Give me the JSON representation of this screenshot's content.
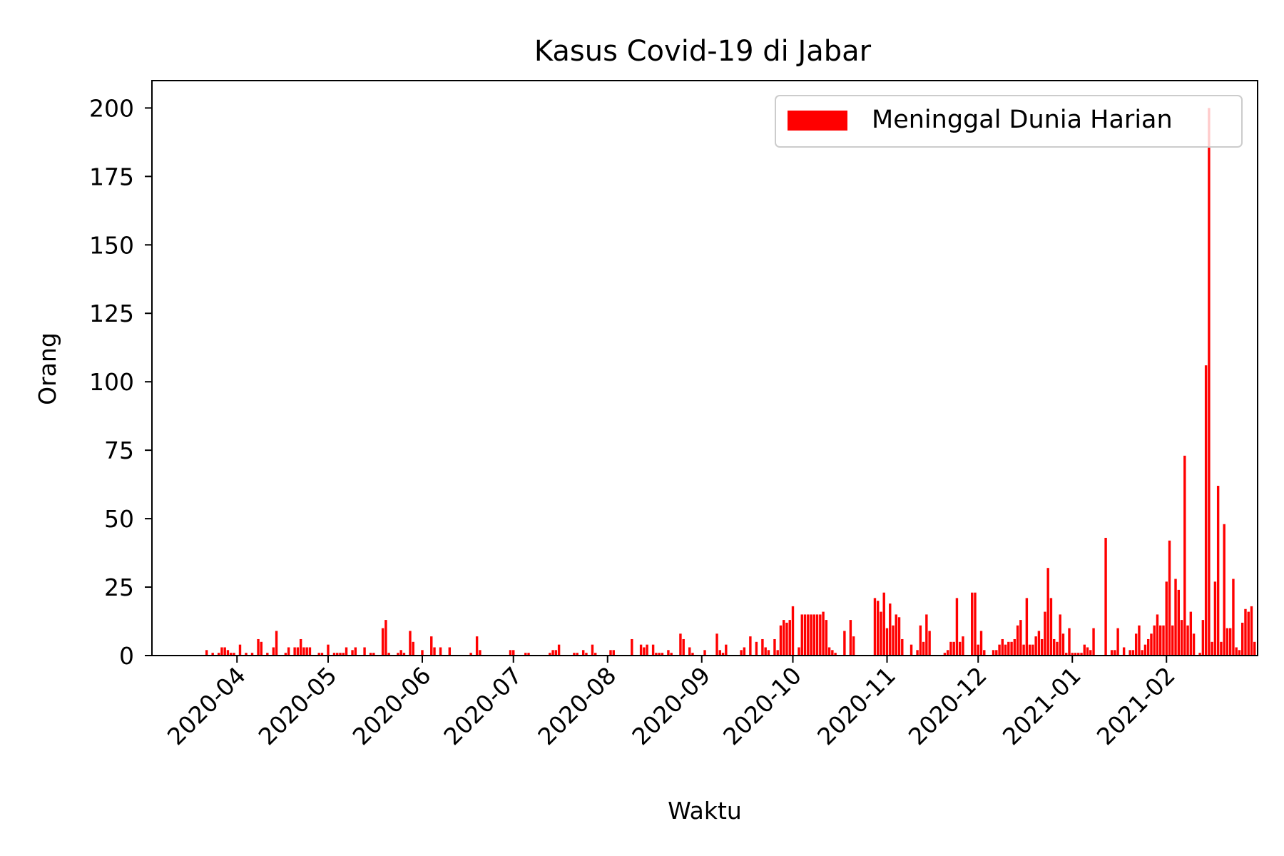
{
  "chart_data": {
    "type": "bar",
    "title": "Kasus Covid-19 di Jabar",
    "xlabel": "Waktu",
    "ylabel": "Orang",
    "ylim": [
      0,
      210
    ],
    "yticks": [
      0,
      25,
      50,
      75,
      100,
      125,
      150,
      175,
      200
    ],
    "xticks": [
      {
        "label": "2020-04",
        "day": 0
      },
      {
        "label": "2020-05",
        "day": 30
      },
      {
        "label": "2020-06",
        "day": 61
      },
      {
        "label": "2020-07",
        "day": 91
      },
      {
        "label": "2020-08",
        "day": 122
      },
      {
        "label": "2020-09",
        "day": 153
      },
      {
        "label": "2020-10",
        "day": 183
      },
      {
        "label": "2020-11",
        "day": 214
      },
      {
        "label": "2020-12",
        "day": 244
      },
      {
        "label": "2021-01",
        "day": 275
      },
      {
        "label": "2021-02",
        "day": 306
      }
    ],
    "xlim_days": [
      -28,
      336
    ],
    "x_unit": "days since 2020-04-01",
    "grid": false,
    "legend_position": "top-right",
    "series": [
      {
        "name": "Meninggal Dunia Harian",
        "color": "#ff0000",
        "start_day": -10,
        "values": [
          2,
          0,
          1,
          0,
          1,
          3,
          3,
          2,
          1,
          1,
          0,
          4,
          0,
          1,
          0,
          1,
          0,
          6,
          5,
          0,
          1,
          0,
          3,
          9,
          0,
          0,
          1,
          3,
          0,
          3,
          3,
          6,
          3,
          3,
          3,
          0,
          0,
          1,
          1,
          0,
          4,
          0,
          1,
          1,
          1,
          1,
          3,
          0,
          2,
          3,
          0,
          0,
          3,
          0,
          1,
          1,
          0,
          0,
          10,
          13,
          1,
          0,
          0,
          1,
          2,
          1,
          0,
          9,
          5,
          0,
          0,
          2,
          0,
          0,
          7,
          3,
          0,
          3,
          0,
          0,
          3,
          0,
          0,
          0,
          0,
          0,
          0,
          1,
          0,
          7,
          2,
          0,
          0,
          0,
          0,
          0,
          0,
          0,
          0,
          0,
          2,
          2,
          0,
          0,
          0,
          1,
          1,
          0,
          0,
          0,
          0,
          0,
          0,
          1,
          2,
          2,
          4,
          0,
          0,
          0,
          0,
          1,
          1,
          0,
          2,
          1,
          0,
          4,
          1,
          0,
          0,
          0,
          0,
          2,
          2,
          0,
          0,
          0,
          0,
          0,
          6,
          0,
          0,
          4,
          3,
          4,
          0,
          4,
          1,
          1,
          1,
          0,
          2,
          1,
          0,
          0,
          8,
          6,
          0,
          3,
          1,
          0,
          0,
          0,
          2,
          0,
          0,
          0,
          8,
          2,
          1,
          4,
          0,
          0,
          0,
          0,
          2,
          3,
          0,
          7,
          0,
          5,
          0,
          6,
          3,
          2,
          0,
          6,
          2,
          11,
          13,
          12,
          13,
          18,
          0,
          3,
          15,
          15,
          15,
          15,
          15,
          15,
          15,
          16,
          13,
          3,
          2,
          1,
          0,
          0,
          9,
          0,
          13,
          7,
          0,
          0,
          0,
          0,
          0,
          0,
          21,
          20,
          16,
          23,
          10,
          19,
          11,
          15,
          14,
          6,
          0,
          0,
          4,
          0,
          2,
          11,
          5,
          15,
          9,
          0,
          0,
          0,
          0,
          1,
          2,
          5,
          5,
          21,
          5,
          7,
          0,
          0,
          23,
          23,
          4,
          9,
          2,
          0,
          0,
          2,
          2,
          4,
          6,
          4,
          5,
          5,
          6,
          11,
          13,
          4,
          21,
          4,
          4,
          7,
          9,
          6,
          16,
          32,
          21,
          6,
          5,
          15,
          8,
          1,
          10,
          1,
          1,
          1,
          1,
          4,
          3,
          2,
          10,
          0,
          0,
          0,
          43,
          0,
          2,
          2,
          10,
          0,
          3,
          0,
          2,
          2,
          8,
          11,
          2,
          4,
          6,
          8,
          11,
          15,
          11,
          11,
          27,
          42,
          11,
          28,
          24,
          13,
          73,
          11,
          16,
          8,
          0,
          1,
          13,
          106,
          200,
          5,
          27,
          62,
          5,
          48,
          10,
          10,
          28,
          3,
          2,
          12,
          17,
          16,
          18,
          5
        ]
      }
    ]
  }
}
